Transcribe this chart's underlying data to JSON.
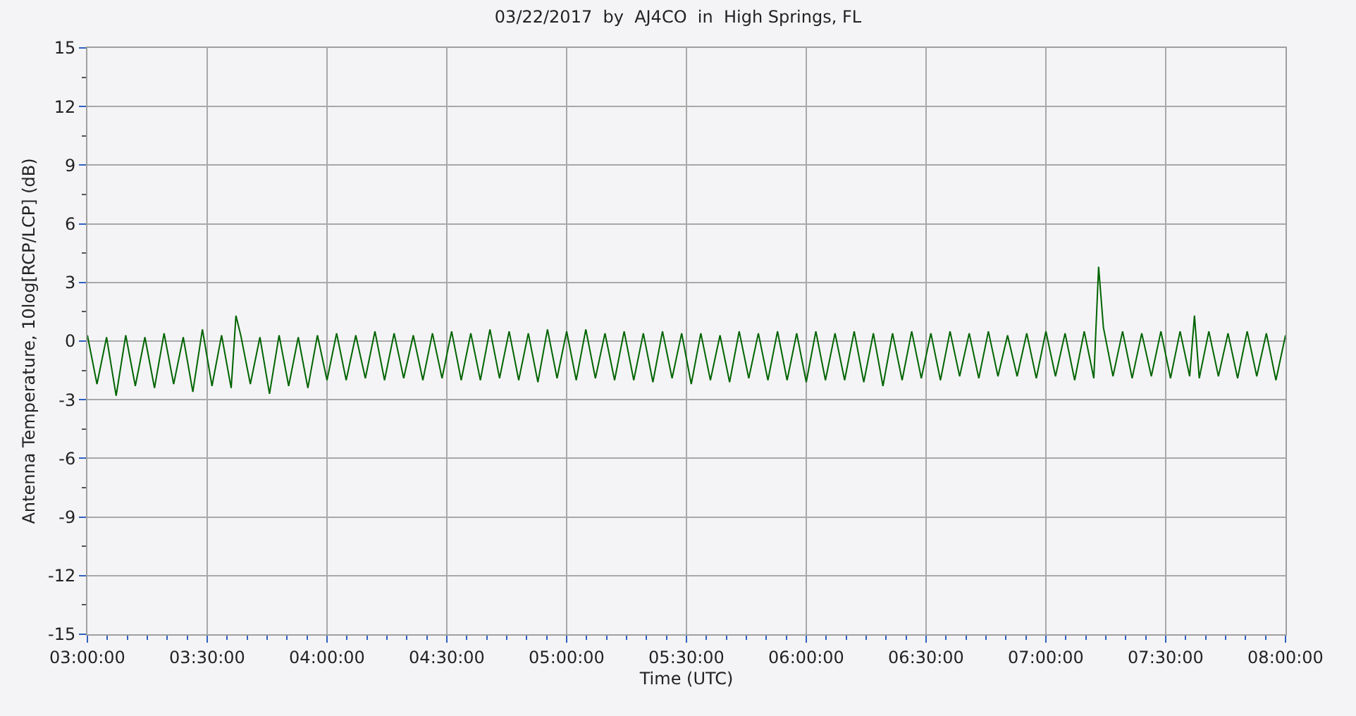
{
  "chart_data": {
    "type": "line",
    "title": "03/22/2017  by  AJ4CO  in  High Springs, FL",
    "xlabel": "Time (UTC)",
    "ylabel": "Antenna Temperature, 10log[RCP/LCP] (dB)",
    "x": [
      3.0,
      3.04,
      3.08,
      3.12,
      3.16,
      3.2,
      3.24,
      3.28,
      3.32,
      3.36,
      3.4,
      3.44,
      3.48,
      3.52,
      3.56,
      3.6,
      3.62,
      3.64,
      3.68,
      3.72,
      3.76,
      3.8,
      3.84,
      3.88,
      3.92,
      3.96,
      4.0,
      4.04,
      4.08,
      4.12,
      4.16,
      4.2,
      4.24,
      4.28,
      4.32,
      4.36,
      4.4,
      4.44,
      4.48,
      4.52,
      4.56,
      4.6,
      4.64,
      4.68,
      4.72,
      4.76,
      4.8,
      4.84,
      4.88,
      4.92,
      4.96,
      5.0,
      5.04,
      5.08,
      5.12,
      5.16,
      5.2,
      5.24,
      5.28,
      5.32,
      5.36,
      5.4,
      5.44,
      5.48,
      5.52,
      5.56,
      5.6,
      5.64,
      5.68,
      5.72,
      5.76,
      5.8,
      5.84,
      5.88,
      5.92,
      5.96,
      6.0,
      6.04,
      6.08,
      6.12,
      6.16,
      6.2,
      6.24,
      6.28,
      6.32,
      6.36,
      6.4,
      6.44,
      6.48,
      6.52,
      6.56,
      6.6,
      6.64,
      6.68,
      6.72,
      6.76,
      6.8,
      6.84,
      6.88,
      6.92,
      6.96,
      7.0,
      7.04,
      7.08,
      7.12,
      7.16,
      7.2,
      7.22,
      7.24,
      7.28,
      7.32,
      7.36,
      7.4,
      7.44,
      7.48,
      7.52,
      7.56,
      7.6,
      7.62,
      7.64,
      7.68,
      7.72,
      7.76,
      7.8,
      7.84,
      7.88,
      7.92,
      7.96,
      8.0
    ],
    "series": [
      {
        "color": "#006400",
        "values": [
          0.3,
          -2.2,
          0.2,
          -2.8,
          0.3,
          -2.3,
          0.2,
          -2.4,
          0.4,
          -2.2,
          0.2,
          -2.6,
          0.6,
          -2.3,
          0.3,
          -2.4,
          1.3,
          0.3,
          -2.2,
          0.2,
          -2.7,
          0.3,
          -2.3,
          0.2,
          -2.4,
          0.3,
          -2.0,
          0.4,
          -2.0,
          0.3,
          -1.9,
          0.5,
          -2.0,
          0.4,
          -1.9,
          0.3,
          -2.0,
          0.4,
          -1.9,
          0.5,
          -2.0,
          0.4,
          -2.0,
          0.6,
          -1.9,
          0.5,
          -2.0,
          0.4,
          -2.1,
          0.6,
          -1.9,
          0.5,
          -2.0,
          0.6,
          -1.9,
          0.4,
          -2.0,
          0.5,
          -2.0,
          0.4,
          -2.1,
          0.5,
          -1.9,
          0.4,
          -2.2,
          0.4,
          -2.0,
          0.3,
          -2.1,
          0.5,
          -1.9,
          0.4,
          -2.0,
          0.5,
          -2.0,
          0.4,
          -2.1,
          0.5,
          -2.0,
          0.4,
          -2.0,
          0.5,
          -2.1,
          0.4,
          -2.3,
          0.4,
          -2.0,
          0.5,
          -1.9,
          0.4,
          -2.0,
          0.5,
          -1.8,
          0.4,
          -1.9,
          0.5,
          -1.8,
          0.3,
          -1.8,
          0.4,
          -1.9,
          0.5,
          -1.8,
          0.4,
          -2.0,
          0.5,
          -1.9,
          3.8,
          0.7,
          -1.8,
          0.5,
          -1.9,
          0.4,
          -1.8,
          0.5,
          -1.9,
          0.5,
          -1.8,
          1.3,
          -1.9,
          0.5,
          -1.8,
          0.4,
          -1.9,
          0.5,
          -1.8,
          0.4,
          -2.0,
          0.3
        ]
      }
    ],
    "xlim": [
      3,
      8
    ],
    "xticks": [
      {
        "value": 3,
        "label": "03:00:00"
      },
      {
        "value": 3.0833,
        "label": null
      },
      {
        "value": 3.1667,
        "label": null
      },
      {
        "value": 3.25,
        "label": null
      },
      {
        "value": 3.3333,
        "label": null
      },
      {
        "value": 3.4167,
        "label": null
      },
      {
        "value": 3.5,
        "label": "03:30:00"
      },
      {
        "value": 3.5833,
        "label": null
      },
      {
        "value": 3.6667,
        "label": null
      },
      {
        "value": 3.75,
        "label": null
      },
      {
        "value": 3.8333,
        "label": null
      },
      {
        "value": 3.9167,
        "label": null
      },
      {
        "value": 4,
        "label": "04:00:00"
      },
      {
        "value": 4.0833,
        "label": null
      },
      {
        "value": 4.1667,
        "label": null
      },
      {
        "value": 4.25,
        "label": null
      },
      {
        "value": 4.3333,
        "label": null
      },
      {
        "value": 4.4167,
        "label": null
      },
      {
        "value": 4.5,
        "label": "04:30:00"
      },
      {
        "value": 4.5833,
        "label": null
      },
      {
        "value": 4.6667,
        "label": null
      },
      {
        "value": 4.75,
        "label": null
      },
      {
        "value": 4.8333,
        "label": null
      },
      {
        "value": 4.9167,
        "label": null
      },
      {
        "value": 5,
        "label": "05:00:00"
      },
      {
        "value": 5.0833,
        "label": null
      },
      {
        "value": 5.1667,
        "label": null
      },
      {
        "value": 5.25,
        "label": null
      },
      {
        "value": 5.3333,
        "label": null
      },
      {
        "value": 5.4167,
        "label": null
      },
      {
        "value": 5.5,
        "label": "05:30:00"
      },
      {
        "value": 5.5833,
        "label": null
      },
      {
        "value": 5.6667,
        "label": null
      },
      {
        "value": 5.75,
        "label": null
      },
      {
        "value": 5.8333,
        "label": null
      },
      {
        "value": 5.9167,
        "label": null
      },
      {
        "value": 6,
        "label": "06:00:00"
      },
      {
        "value": 6.0833,
        "label": null
      },
      {
        "value": 6.1667,
        "label": null
      },
      {
        "value": 6.25,
        "label": null
      },
      {
        "value": 6.3333,
        "label": null
      },
      {
        "value": 6.4167,
        "label": null
      },
      {
        "value": 6.5,
        "label": "06:30:00"
      },
      {
        "value": 6.5833,
        "label": null
      },
      {
        "value": 6.6667,
        "label": null
      },
      {
        "value": 6.75,
        "label": null
      },
      {
        "value": 6.8333,
        "label": null
      },
      {
        "value": 6.9167,
        "label": null
      },
      {
        "value": 7,
        "label": "07:00:00"
      },
      {
        "value": 7.0833,
        "label": null
      },
      {
        "value": 7.1667,
        "label": null
      },
      {
        "value": 7.25,
        "label": null
      },
      {
        "value": 7.3333,
        "label": null
      },
      {
        "value": 7.4167,
        "label": null
      },
      {
        "value": 7.5,
        "label": "07:30:00"
      },
      {
        "value": 7.5833,
        "label": null
      },
      {
        "value": 7.6667,
        "label": null
      },
      {
        "value": 7.75,
        "label": null
      },
      {
        "value": 7.8333,
        "label": null
      },
      {
        "value": 7.9167,
        "label": null
      },
      {
        "value": 8,
        "label": "08:00:00"
      }
    ],
    "ylim": [
      -15,
      15
    ],
    "yticks": [
      -15,
      {
        "value": -13.5,
        "label": null
      },
      -12,
      {
        "value": -10.5,
        "label": null
      },
      -9,
      {
        "value": -7.5,
        "label": null
      },
      -6,
      {
        "value": -4.5,
        "label": null
      },
      -3,
      {
        "value": -1.5,
        "label": null
      },
      0,
      {
        "value": 1.5,
        "label": null
      },
      3,
      {
        "value": 4.5,
        "label": null
      },
      6,
      {
        "value": 7.5,
        "label": null
      },
      9,
      {
        "value": 10.5,
        "label": null
      },
      12,
      {
        "value": 13.5,
        "label": null
      },
      15
    ],
    "grid": true,
    "line_style": "solid",
    "marker": "none",
    "legend": false
  }
}
